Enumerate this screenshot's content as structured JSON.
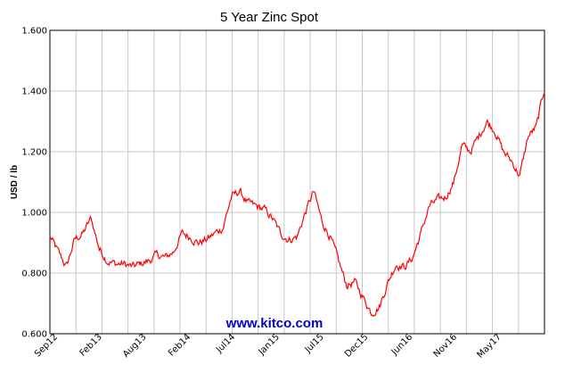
{
  "chart_data": {
    "type": "line",
    "title": "5 Year Zinc Spot",
    "ylabel": "USD / lb",
    "xlabel": "",
    "watermark": "www.kitco.com",
    "ylim": [
      0.6,
      1.6
    ],
    "y_ticks": [
      "0.600",
      "0.800",
      "1.000",
      "1.200",
      "1.400",
      "1.600"
    ],
    "x_ticks": [
      "Sep12",
      "Feb13",
      "Aug13",
      "Feb14",
      "Jul14",
      "Jan15",
      "Jul15",
      "Dec15",
      "Jun16",
      "Nov16",
      "May17"
    ],
    "grid": true,
    "colors": {
      "line": "#ff0000",
      "grid": "#c8c8c8",
      "watermark": "#0000cc"
    },
    "series": [
      {
        "x": [
          "2012-09",
          "2012-10",
          "2012-11",
          "2012-12",
          "2013-01",
          "2013-02",
          "2013-03",
          "2013-04",
          "2013-05",
          "2013-06",
          "2013-07",
          "2013-08",
          "2013-09",
          "2013-10",
          "2013-11",
          "2013-12",
          "2014-01",
          "2014-02",
          "2014-03",
          "2014-04",
          "2014-05",
          "2014-06",
          "2014-07",
          "2014-08",
          "2014-09",
          "2014-10",
          "2014-11",
          "2014-12",
          "2015-01",
          "2015-02",
          "2015-03",
          "2015-04",
          "2015-05",
          "2015-06",
          "2015-07",
          "2015-08",
          "2015-09",
          "2015-10",
          "2015-11",
          "2015-12",
          "2016-01",
          "2016-02",
          "2016-03",
          "2016-04",
          "2016-05",
          "2016-06",
          "2016-07",
          "2016-08",
          "2016-09",
          "2016-10",
          "2016-11",
          "2016-12",
          "2017-01",
          "2017-02",
          "2017-03",
          "2017-04",
          "2017-05",
          "2017-06",
          "2017-07",
          "2017-08",
          "2017-09"
        ],
        "values": [
          0.92,
          0.87,
          0.82,
          0.91,
          0.93,
          0.98,
          0.88,
          0.84,
          0.83,
          0.83,
          0.82,
          0.83,
          0.84,
          0.86,
          0.85,
          0.87,
          0.93,
          0.92,
          0.9,
          0.91,
          0.93,
          0.95,
          1.05,
          1.07,
          1.03,
          1.02,
          1.01,
          0.98,
          0.93,
          0.91,
          0.92,
          1.0,
          1.07,
          0.97,
          0.92,
          0.84,
          0.76,
          0.77,
          0.72,
          0.67,
          0.69,
          0.77,
          0.83,
          0.82,
          0.85,
          0.93,
          1.02,
          1.04,
          1.05,
          1.1,
          1.22,
          1.2,
          1.25,
          1.3,
          1.27,
          1.2,
          1.17,
          1.12,
          1.25,
          1.28,
          1.41
        ]
      }
    ]
  }
}
